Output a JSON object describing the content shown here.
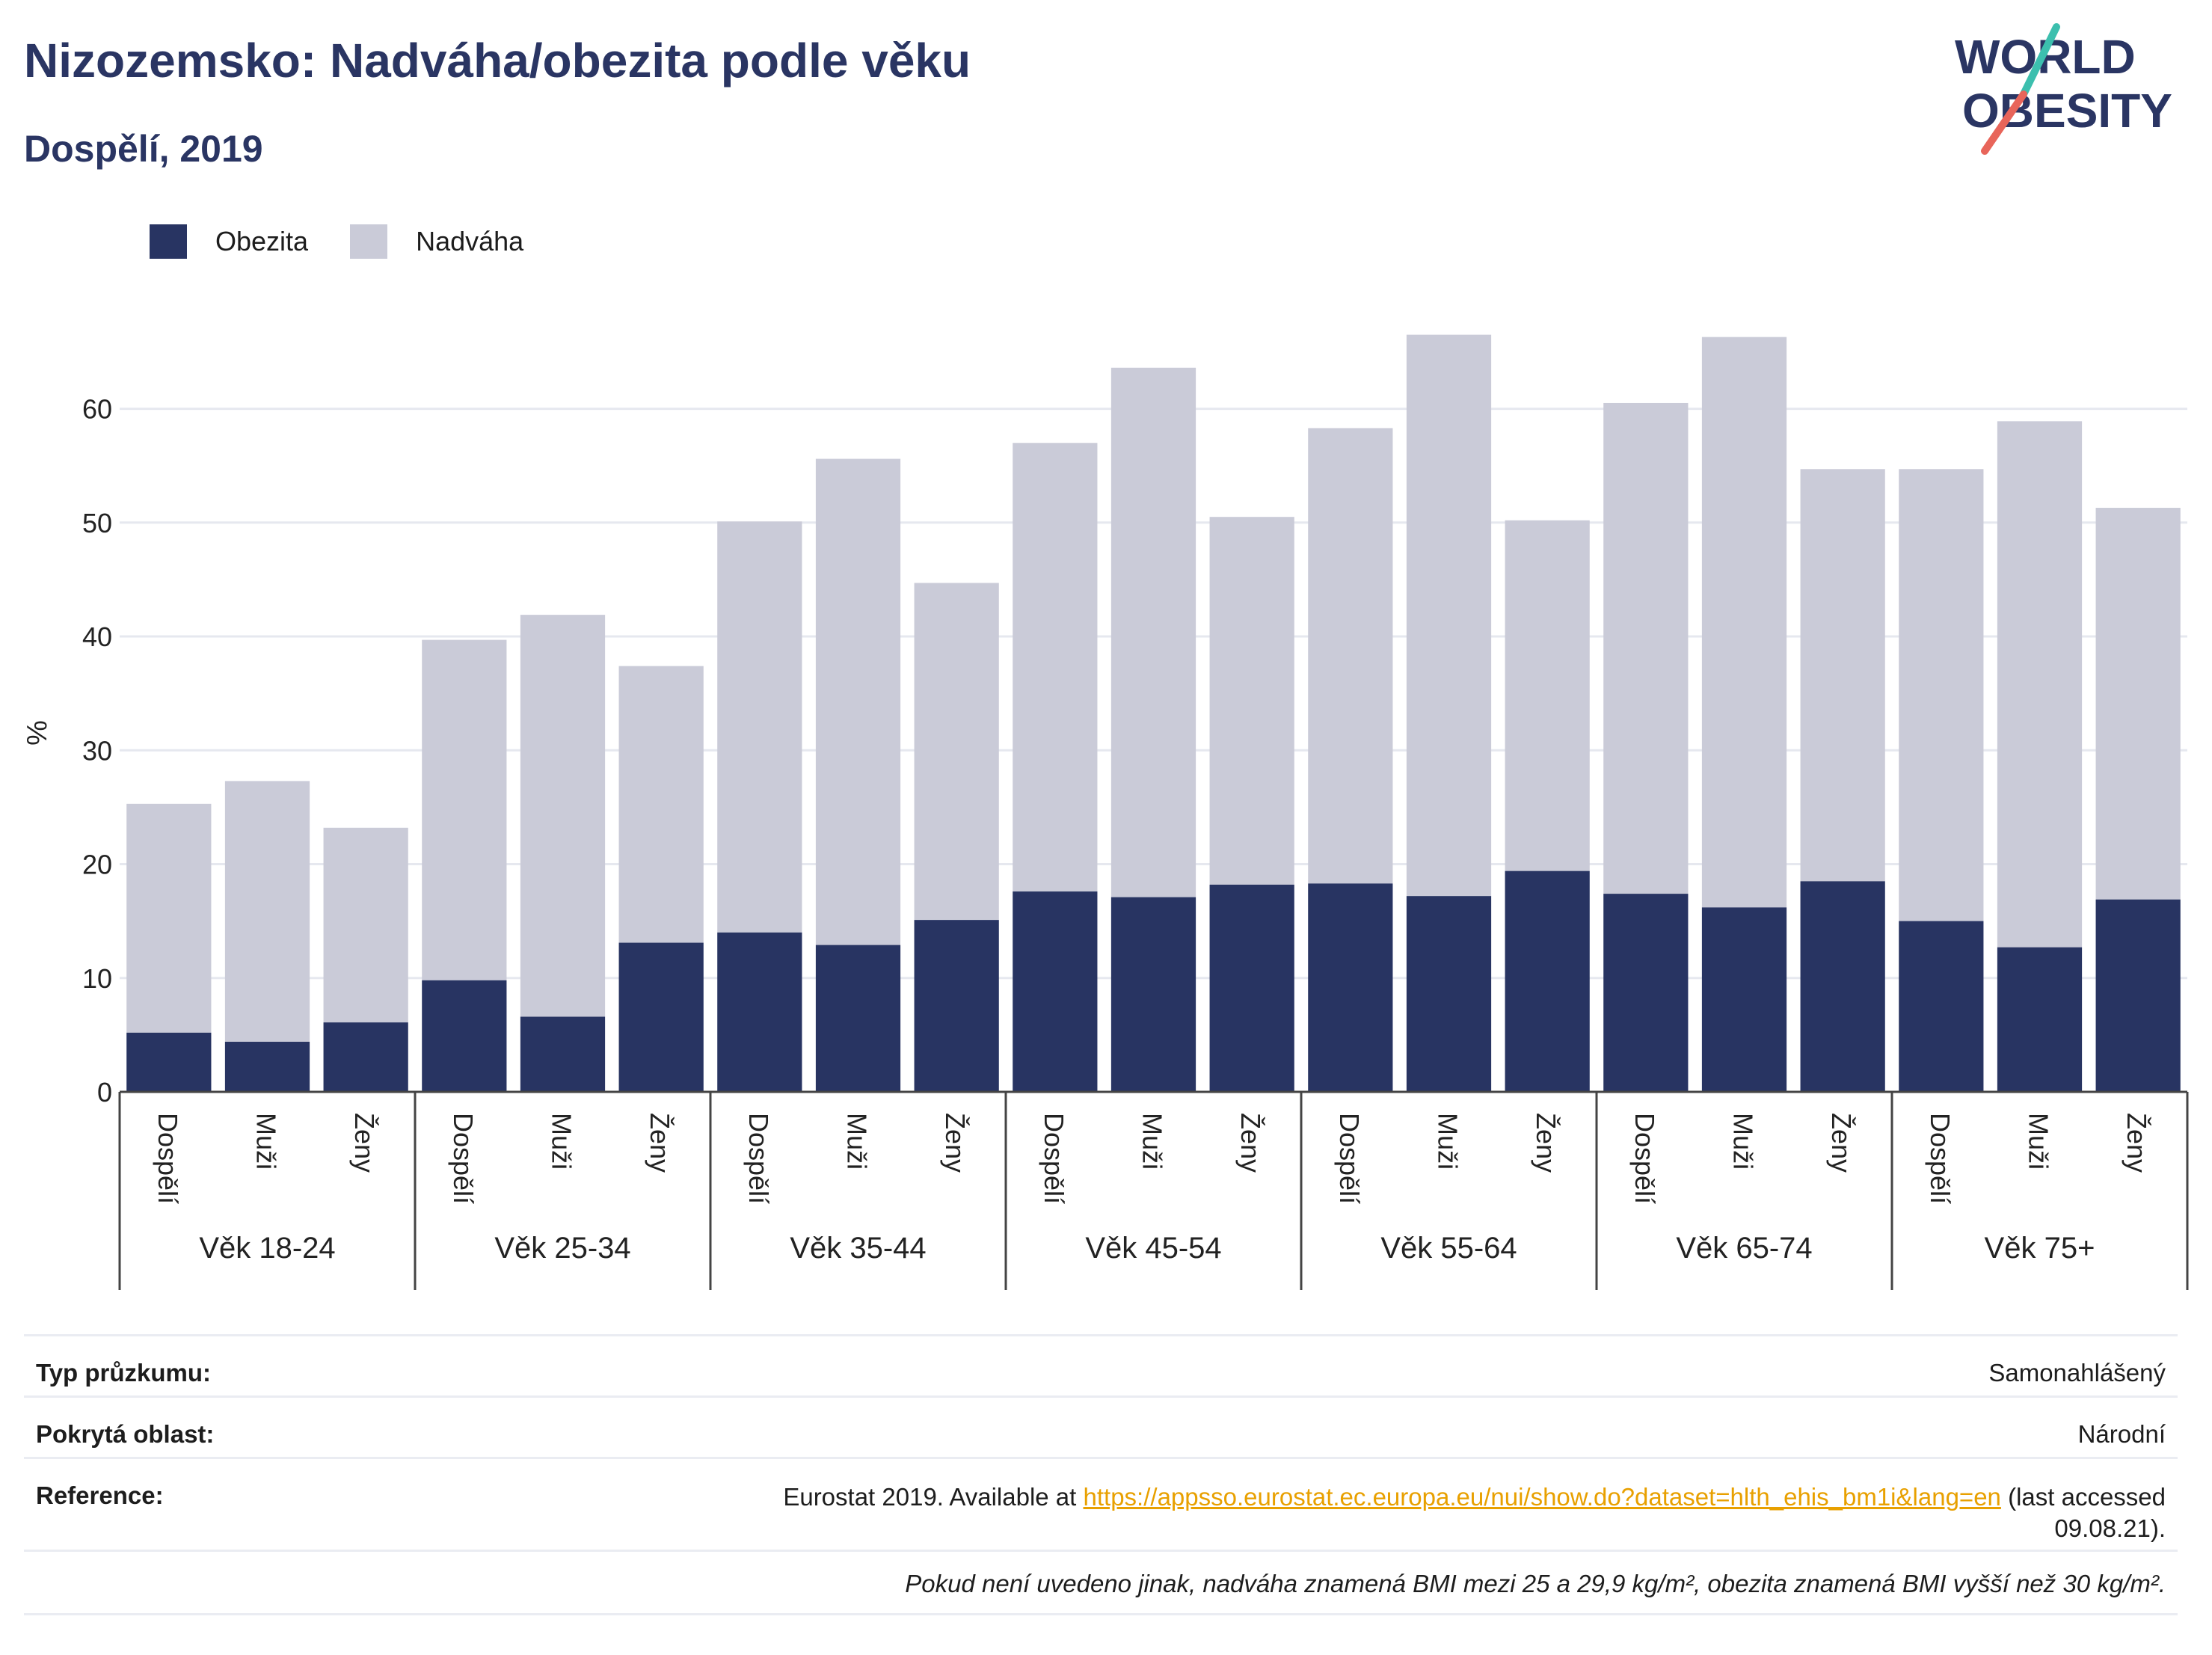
{
  "header": {
    "title": "Nizozemsko: Nadváha/obezita podle věku",
    "subtitle": "Dospělí, 2019",
    "logo_line1": "WORLD",
    "logo_line2": "OBESITY"
  },
  "legend": {
    "obesity_label": "Obezita",
    "overweight_label": "Nadváha"
  },
  "colors": {
    "obesity": "#283462",
    "overweight": "#cacbd8",
    "grid": "#e6e8ef",
    "logo_text": "#2a3563",
    "logo_accent_teal": "#3cbfae",
    "logo_accent_red": "#e8655a"
  },
  "chart_data": {
    "type": "bar",
    "stacked": true,
    "ylabel": "%",
    "ylim": [
      0,
      67
    ],
    "yticks": [
      0,
      10,
      20,
      30,
      40,
      50,
      60
    ],
    "grid": true,
    "legend_position": "top-left",
    "groups": [
      "Věk 18-24",
      "Věk 25-34",
      "Věk 35-44",
      "Věk 45-54",
      "Věk 55-64",
      "Věk 65-74",
      "Věk 75+"
    ],
    "sub_categories": [
      "Dospělí",
      "Muži",
      "Ženy"
    ],
    "series": [
      {
        "name": "Obezita",
        "values": [
          5.2,
          4.4,
          6.1,
          9.8,
          6.6,
          13.1,
          14.0,
          12.9,
          15.1,
          17.6,
          17.1,
          18.2,
          18.3,
          17.2,
          19.4,
          17.4,
          16.2,
          18.5,
          15.0,
          12.7,
          16.9
        ]
      },
      {
        "name": "Nadváha",
        "values": [
          20.1,
          22.9,
          17.1,
          29.9,
          35.3,
          24.3,
          36.1,
          42.7,
          29.6,
          39.4,
          46.5,
          32.3,
          40.0,
          49.3,
          30.8,
          43.1,
          50.1,
          36.2,
          39.7,
          46.2,
          34.4
        ]
      }
    ],
    "totals": [
      25.3,
      27.3,
      23.2,
      39.7,
      41.9,
      37.4,
      50.1,
      55.6,
      44.7,
      57.0,
      63.6,
      50.5,
      58.3,
      66.5,
      50.2,
      60.5,
      66.3,
      54.7,
      54.7,
      58.9,
      51.3
    ]
  },
  "info": {
    "survey_type_label": "Typ průzkumu:",
    "survey_type_value": "Samonahlášený",
    "coverage_label": "Pokrytá oblast:",
    "coverage_value": "Národní",
    "reference_label": "Reference:",
    "reference_prefix": "Eurostat 2019. Available at ",
    "reference_link": "https://appsso.eurostat.ec.europa.eu/nui/show.do?dataset=hlth_ehis_bm1i&lang=en",
    "reference_suffix": " (last accessed",
    "reference_date": "09.08.21).",
    "footnote": "Pokud není uvedeno jinak, nadváha znamená BMI mezi 25 a 29,9 kg/m², obezita znamená BMI vyšší než 30 kg/m²."
  }
}
